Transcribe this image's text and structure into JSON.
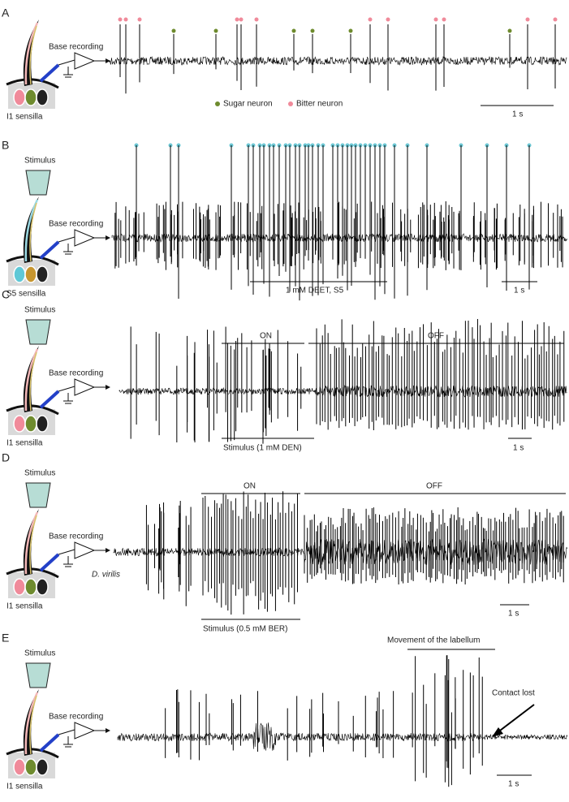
{
  "panels": [
    {
      "label": "A",
      "recording": "Base recording",
      "sensilla": "I1 sensilla",
      "legend": [
        "Sugar neuron",
        "Bitter neuron"
      ],
      "scale": "1 s"
    },
    {
      "label": "B",
      "stimulus": "Stimulus",
      "recording": "Base recording",
      "sensilla": "S5 sensilla",
      "bar_label": "1 mM DEET, S5",
      "scale": "1 s"
    },
    {
      "label": "C",
      "stimulus": "Stimulus",
      "recording": "Base recording",
      "sensilla": "I1 sensilla",
      "on": "ON",
      "off": "OFF",
      "bar_label": "Stimulus (1 mM DEN)",
      "scale": "1 s"
    },
    {
      "label": "D",
      "stimulus": "Stimulus",
      "recording": "Base recording",
      "species": "D. virilis",
      "sensilla": "I1 sensilla",
      "on": "ON",
      "off": "OFF",
      "bar_label": "Stimulus (0.5 mM BER)",
      "scale": "1 s"
    },
    {
      "label": "E",
      "stimulus": "Stimulus",
      "recording": "Base recording",
      "sensilla": "I1 sensilla",
      "movement": "Movement of the labellum",
      "contact": "Contact lost",
      "scale": "1 s"
    }
  ]
}
